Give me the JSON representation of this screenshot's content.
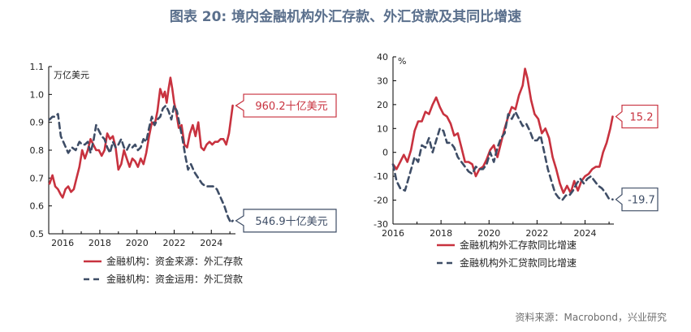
{
  "figure": {
    "title": "图表 20: 境内金融机构外汇存款、外汇贷款及其同比增速",
    "source": "资料来源：Macrobond，兴业研究"
  },
  "colors": {
    "red": "#c8323f",
    "navy": "#3e4d66",
    "axis": "#000000"
  },
  "chart_data": [
    {
      "type": "line",
      "ylabel": "万亿美元",
      "ylim": [
        0.5,
        1.1
      ],
      "yticks": [
        "0.5",
        "0.6",
        "0.7",
        "0.8",
        "0.9",
        "1.0",
        "1.1"
      ],
      "xlim": [
        2015.25,
        2025.3
      ],
      "xticks": [
        "2016",
        "2018",
        "2020",
        "2022",
        "2024"
      ],
      "legend_position": "bottom",
      "series": [
        {
          "name": "金融机构：资金来源：外汇存款",
          "color": "#c8323f",
          "dash": "solid",
          "x": [
            2015.3,
            2015.45,
            2015.6,
            2015.75,
            2015.9,
            2016.0,
            2016.15,
            2016.3,
            2016.45,
            2016.6,
            2016.75,
            2016.9,
            2017.05,
            2017.2,
            2017.35,
            2017.5,
            2017.65,
            2017.8,
            2017.95,
            2018.1,
            2018.25,
            2018.4,
            2018.55,
            2018.7,
            2018.85,
            2019.0,
            2019.15,
            2019.3,
            2019.45,
            2019.6,
            2019.75,
            2019.9,
            2020.05,
            2020.2,
            2020.35,
            2020.5,
            2020.65,
            2020.8,
            2020.95,
            2021.1,
            2021.25,
            2021.4,
            2021.5,
            2021.6,
            2021.7,
            2021.8,
            2021.9,
            2022.0,
            2022.1,
            2022.25,
            2022.4,
            2022.55,
            2022.7,
            2022.85,
            2023.0,
            2023.15,
            2023.3,
            2023.45,
            2023.6,
            2023.75,
            2023.9,
            2024.05,
            2024.2,
            2024.35,
            2024.5,
            2024.65,
            2024.8,
            2024.95,
            2025.05,
            2025.15
          ],
          "y": [
            0.68,
            0.71,
            0.67,
            0.66,
            0.64,
            0.63,
            0.66,
            0.67,
            0.65,
            0.66,
            0.7,
            0.74,
            0.8,
            0.77,
            0.8,
            0.84,
            0.82,
            0.8,
            0.8,
            0.78,
            0.8,
            0.86,
            0.84,
            0.85,
            0.81,
            0.73,
            0.75,
            0.8,
            0.77,
            0.74,
            0.77,
            0.76,
            0.74,
            0.77,
            0.75,
            0.79,
            0.85,
            0.9,
            0.89,
            0.94,
            1.02,
            0.99,
            1.01,
            0.97,
            1.02,
            1.06,
            1.02,
            0.97,
            0.94,
            0.88,
            0.89,
            0.82,
            0.81,
            0.86,
            0.89,
            0.85,
            0.9,
            0.81,
            0.8,
            0.82,
            0.83,
            0.82,
            0.83,
            0.83,
            0.84,
            0.84,
            0.82,
            0.86,
            0.91,
            0.96
          ]
        },
        {
          "name": "金融机构：资金运用：外汇贷款",
          "color": "#3e4d66",
          "dash": "dashed",
          "x": [
            2015.3,
            2015.45,
            2015.6,
            2015.75,
            2015.9,
            2016.1,
            2016.3,
            2016.5,
            2016.7,
            2016.9,
            2017.05,
            2017.2,
            2017.35,
            2017.5,
            2017.65,
            2017.8,
            2017.95,
            2018.1,
            2018.25,
            2018.4,
            2018.55,
            2018.7,
            2018.85,
            2019.0,
            2019.15,
            2019.3,
            2019.45,
            2019.6,
            2019.75,
            2019.9,
            2020.05,
            2020.2,
            2020.35,
            2020.5,
            2020.65,
            2020.8,
            2020.95,
            2021.1,
            2021.25,
            2021.4,
            2021.55,
            2021.7,
            2021.85,
            2022.0,
            2022.15,
            2022.3,
            2022.45,
            2022.6,
            2022.75,
            2022.9,
            2023.1,
            2023.3,
            2023.5,
            2023.7,
            2023.9,
            2024.1,
            2024.3,
            2024.5,
            2024.7,
            2024.9,
            2025.05,
            2025.15
          ],
          "y": [
            0.91,
            0.92,
            0.92,
            0.93,
            0.85,
            0.82,
            0.79,
            0.81,
            0.8,
            0.83,
            0.82,
            0.82,
            0.83,
            0.79,
            0.83,
            0.89,
            0.87,
            0.85,
            0.84,
            0.81,
            0.79,
            0.83,
            0.81,
            0.82,
            0.84,
            0.81,
            0.8,
            0.82,
            0.81,
            0.82,
            0.8,
            0.81,
            0.84,
            0.83,
            0.88,
            0.92,
            0.89,
            0.91,
            0.92,
            0.95,
            0.96,
            0.94,
            0.91,
            0.96,
            0.94,
            0.89,
            0.84,
            0.78,
            0.73,
            0.75,
            0.72,
            0.7,
            0.68,
            0.67,
            0.67,
            0.67,
            0.66,
            0.63,
            0.6,
            0.56,
            0.54,
            0.547
          ]
        }
      ],
      "annotations": [
        {
          "text": "960.2十亿美元",
          "series": 0,
          "color": "#c8323f"
        },
        {
          "text": "546.9十亿美元",
          "series": 1,
          "color": "#3e4d66"
        }
      ]
    },
    {
      "type": "line",
      "ylabel": "%",
      "ylim": [
        -30,
        40
      ],
      "yticks": [
        "-30",
        "-20",
        "-10",
        "0",
        "10",
        "20",
        "30",
        "40"
      ],
      "xlim": [
        2016.0,
        2025.2
      ],
      "xticks": [
        "2016",
        "2018",
        "2020",
        "2022",
        "2024"
      ],
      "legend_position": "bottom",
      "series": [
        {
          "name": "金融机构外汇存款同比增速",
          "color": "#c8323f",
          "dash": "solid",
          "x": [
            2016.0,
            2016.15,
            2016.3,
            2016.45,
            2016.6,
            2016.75,
            2016.9,
            2017.05,
            2017.2,
            2017.35,
            2017.5,
            2017.65,
            2017.8,
            2017.95,
            2018.1,
            2018.25,
            2018.4,
            2018.55,
            2018.7,
            2018.85,
            2019.0,
            2019.15,
            2019.3,
            2019.45,
            2019.6,
            2019.75,
            2019.9,
            2020.05,
            2020.2,
            2020.35,
            2020.5,
            2020.65,
            2020.8,
            2020.95,
            2021.1,
            2021.25,
            2021.4,
            2021.5,
            2021.6,
            2021.75,
            2021.9,
            2022.05,
            2022.2,
            2022.35,
            2022.5,
            2022.65,
            2022.8,
            2022.95,
            2023.1,
            2023.25,
            2023.4,
            2023.55,
            2023.7,
            2023.85,
            2024.0,
            2024.15,
            2024.3,
            2024.45,
            2024.6,
            2024.75,
            2024.9,
            2025.05,
            2025.15
          ],
          "y": [
            -5,
            -7,
            -4,
            -1,
            -4,
            1,
            9,
            13,
            13,
            17,
            16,
            20,
            23,
            19,
            16,
            15,
            12,
            7,
            8,
            2,
            -4,
            -4,
            -5,
            -10,
            -7,
            -6,
            -3,
            1,
            3,
            -2,
            4,
            10,
            15,
            19,
            18,
            24,
            28,
            35,
            31,
            22,
            16,
            14,
            8,
            10,
            6,
            -2,
            -7,
            -13,
            -17,
            -14,
            -17,
            -12,
            -16,
            -12,
            -10,
            -9,
            -7,
            -6,
            -6,
            0,
            4,
            10,
            15
          ]
        },
        {
          "name": "金融机构外汇贷款同比增速",
          "color": "#3e4d66",
          "dash": "dashed",
          "x": [
            2016.0,
            2016.15,
            2016.3,
            2016.5,
            2016.7,
            2016.9,
            2017.05,
            2017.2,
            2017.35,
            2017.5,
            2017.65,
            2017.8,
            2017.95,
            2018.1,
            2018.25,
            2018.4,
            2018.55,
            2018.7,
            2018.85,
            2019.0,
            2019.15,
            2019.3,
            2019.45,
            2019.6,
            2019.75,
            2019.9,
            2020.05,
            2020.2,
            2020.35,
            2020.5,
            2020.65,
            2020.8,
            2020.95,
            2021.1,
            2021.25,
            2021.4,
            2021.55,
            2021.7,
            2021.85,
            2022.0,
            2022.15,
            2022.3,
            2022.45,
            2022.6,
            2022.75,
            2022.9,
            2023.05,
            2023.2,
            2023.35,
            2023.5,
            2023.65,
            2023.8,
            2023.95,
            2024.1,
            2024.25,
            2024.4,
            2024.55,
            2024.7,
            2024.85,
            2025.0,
            2025.15
          ],
          "y": [
            -5,
            -12,
            -15,
            -16,
            -9,
            -2,
            -4,
            3,
            2,
            6,
            0,
            5,
            10,
            9,
            4,
            4,
            2,
            -2,
            -4,
            -6,
            -8,
            -9,
            -6,
            -7,
            -7,
            -5,
            0,
            -4,
            2,
            6,
            8,
            16,
            14,
            17,
            14,
            11,
            12,
            9,
            5,
            5,
            7,
            0,
            -7,
            -12,
            -17,
            -19,
            -20,
            -18,
            -18,
            -16,
            -13,
            -11,
            -13,
            -11,
            -10,
            -12,
            -14,
            -15,
            -17,
            -19.5,
            -19.7
          ]
        }
      ],
      "annotations": [
        {
          "text": "15.2",
          "series": 0,
          "color": "#c8323f"
        },
        {
          "text": "-19.7",
          "series": 1,
          "color": "#3e4d66"
        }
      ]
    }
  ]
}
